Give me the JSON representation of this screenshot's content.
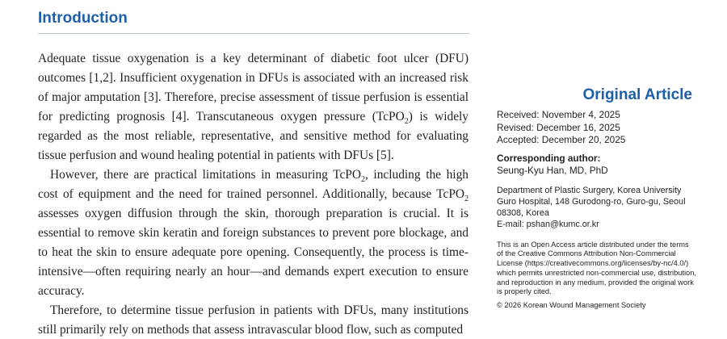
{
  "header": {
    "section_title": "Introduction"
  },
  "body": {
    "paragraphs": [
      {
        "parts": [
          {
            "text": "Adequate tissue oxygenation is a key determinant of diabetic foot ulcer (DFU) outcomes [1,2]. Insufficient oxygenation in DFUs is associated with an increased risk of major amputation [3]. Therefore, precise assessment of tissue perfusion is essential for predicting prognosis [4]. Transcutaneous oxygen pressure (TcPO"
          },
          {
            "sub": "2"
          },
          {
            "text": ") is widely regarded as the most reliable, representative, and sensitive method for evaluating tissue perfusion and wound healing potential in patients with DFUs [5]."
          }
        ]
      },
      {
        "parts": [
          {
            "text": "However, there are practical limitations in measuring TcPO"
          },
          {
            "sub": "2"
          },
          {
            "text": ", including the high cost of equipment and the need for trained personnel. Additionally, because TcPO"
          },
          {
            "sub": "2"
          },
          {
            "text": " assesses oxygen diffusion through the skin, thorough preparation is crucial. It is essential to remove skin keratin and foreign substances to prevent pore blockage, and to heat the skin to ensure adequate pore opening. Consequently, the process is time-intensive—often requiring nearly an hour—and demands expert execution to ensure accuracy."
          }
        ]
      },
      {
        "parts": [
          {
            "text": "Therefore, to determine tissue perfusion in patients with DFUs, many institutions still primarily rely on methods that assess intravascular blood flow, such as computed"
          }
        ]
      }
    ]
  },
  "sidebar": {
    "article_type": "Original Article",
    "dates": [
      "Received: November 4, 2025",
      "Revised: December 16, 2025",
      "Accepted: December 20, 2025"
    ],
    "corresponding_label": "Corresponding author:",
    "author": "Seung-Kyu Han, MD, PhD",
    "address_lines": [
      "Department of Plastic Surgery, Korea University",
      "Guro Hospital, 148 Gurodong-ro, Guro-gu, Seoul",
      "08308, Korea",
      "E-mail: pshan@kumc.or.kr"
    ],
    "license_lines": [
      "This is an Open Access article distributed under the terms",
      "of the Creative Commons Attribution Non-Commercial",
      "License (https://creativecommons.org/licenses/by-nc/4.0/)",
      "which permits unrestricted non-commercial use, distribution,",
      "and reproduction in any medium, provided the original work",
      "is properly cited."
    ],
    "copyright": "© 2026 Korean Wound Management Society"
  }
}
